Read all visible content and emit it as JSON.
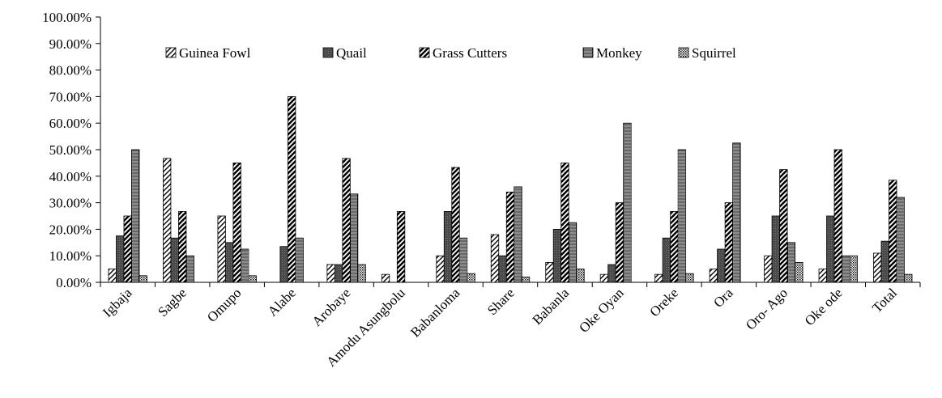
{
  "chart_data": {
    "type": "bar",
    "title": "",
    "xlabel": "",
    "ylabel": "",
    "ylim": [
      0,
      100
    ],
    "y_tick_values": [
      0,
      10,
      20,
      30,
      40,
      50,
      60,
      70,
      80,
      90,
      100
    ],
    "y_tick_labels": [
      "0.00%",
      "10.00%",
      "20.00%",
      "30.00%",
      "40.00%",
      "50.00%",
      "60.00%",
      "70.00%",
      "80.00%",
      "90.00%",
      "100.00%"
    ],
    "categories": [
      "Igbaja",
      "Sagbe",
      "Omupo",
      "Alabe",
      "Arobaye",
      "Amodu Asungbolu",
      "Babanloma",
      "Share",
      "Babanla",
      "Oke Oyan",
      "Oreke",
      "Ora",
      "Oro- Ago",
      "Oke ode",
      "Total"
    ],
    "legend_position": "top-center",
    "grid": false,
    "series": [
      {
        "name": "Guinea Fowl",
        "pattern": "diag-right-sparse",
        "values": [
          5,
          46.7,
          25,
          0,
          6.7,
          3,
          10,
          18,
          7.5,
          3,
          3,
          5,
          10,
          5,
          11
        ]
      },
      {
        "name": "Quail",
        "pattern": "dark-dense",
        "values": [
          17.5,
          16.7,
          15,
          13.5,
          6.7,
          0,
          26.7,
          10,
          20,
          6.7,
          16.7,
          12.5,
          25,
          25,
          15.5
        ]
      },
      {
        "name": "Grass Cutters",
        "pattern": "diag-bold",
        "values": [
          25,
          26.7,
          45,
          70,
          46.7,
          26.7,
          43.3,
          34,
          45,
          30,
          26.7,
          30,
          42.5,
          50,
          38.5
        ]
      },
      {
        "name": "Monkey",
        "pattern": "vertical-grid",
        "values": [
          50,
          10,
          12.5,
          16.7,
          33.3,
          0,
          16.7,
          36,
          22.5,
          60,
          50,
          52.5,
          15,
          10,
          32
        ]
      },
      {
        "name": "Squirrel",
        "pattern": "dots",
        "values": [
          2.5,
          0,
          2.5,
          0,
          6.7,
          0,
          3.3,
          2,
          5,
          0,
          3.3,
          0,
          7.5,
          10,
          3
        ]
      }
    ]
  }
}
